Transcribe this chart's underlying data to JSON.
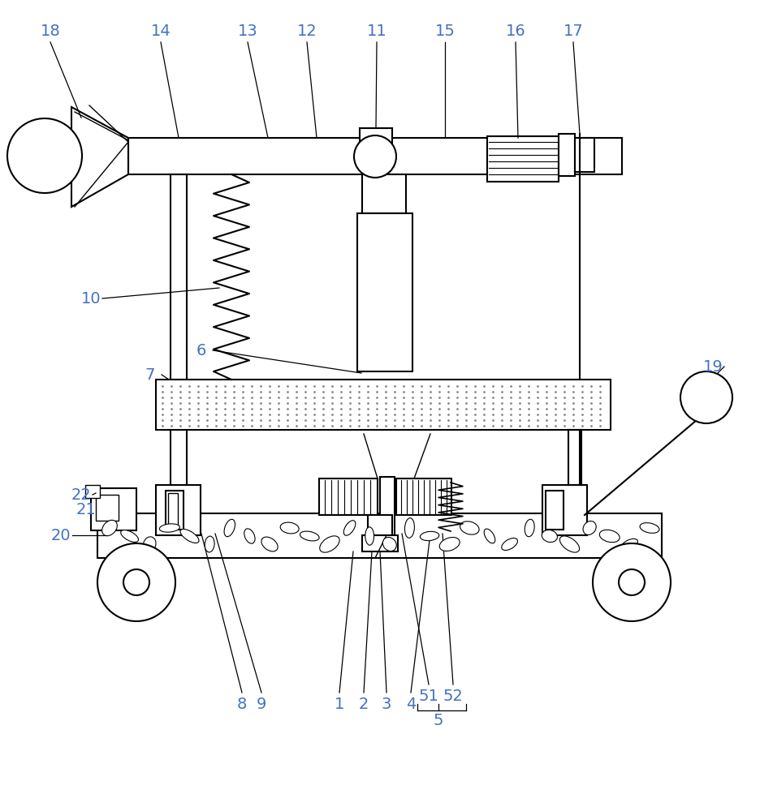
{
  "bg_color": "#ffffff",
  "line_color": "#000000",
  "label_color": "#4472c4",
  "fig_width": 9.36,
  "fig_height": 10.0,
  "dpi": 100,
  "lw": 1.5,
  "label_fontsize": 14
}
